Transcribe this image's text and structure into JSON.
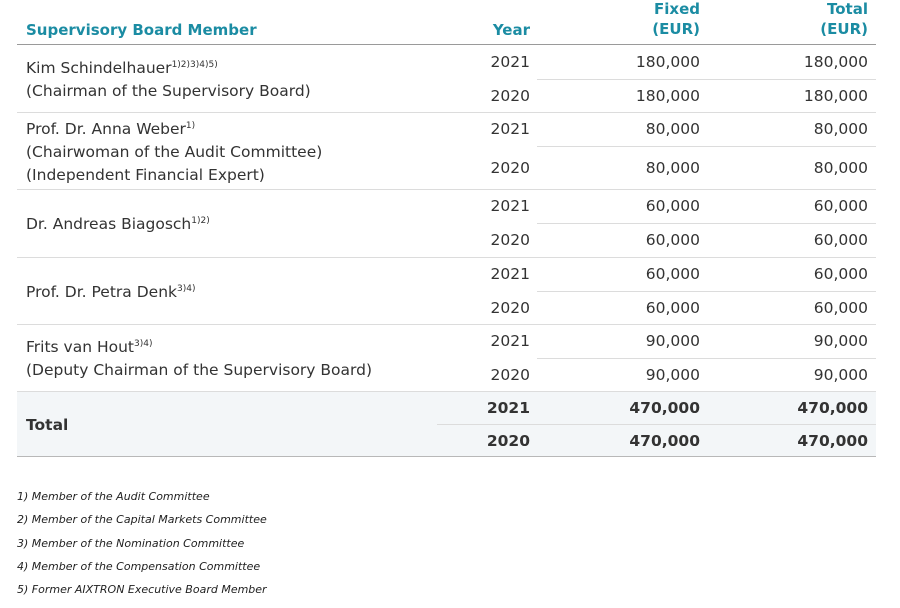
{
  "header": {
    "member": "Supervisory Board Member",
    "year": "Year",
    "fixed": [
      "Fixed",
      "(EUR)"
    ],
    "total": [
      "Total",
      "(EUR)"
    ]
  },
  "members": [
    {
      "name": "Kim Schindelhauer",
      "notes": "1)2)3)4)5)",
      "roles": [
        "(Chairman of the Supervisory Board)"
      ],
      "rows": [
        [
          "2021",
          "180,000",
          "180,000"
        ],
        [
          "2020",
          "180,000",
          "180,000"
        ]
      ]
    },
    {
      "name": "Prof. Dr. Anna Weber",
      "notes": "1)",
      "roles": [
        "(Chairwoman of the Audit Committee)",
        "(Independent Financial Expert)"
      ],
      "rows": [
        [
          "2021",
          "80,000",
          "80,000"
        ],
        [
          "2020",
          "80,000",
          "80,000"
        ]
      ]
    },
    {
      "name": "Dr. Andreas Biagosch",
      "notes": "1)2)",
      "roles": [],
      "rows": [
        [
          "2021",
          "60,000",
          "60,000"
        ],
        [
          "2020",
          "60,000",
          "60,000"
        ]
      ]
    },
    {
      "name": "Prof. Dr. Petra Denk",
      "notes": "3)4)",
      "roles": [],
      "rows": [
        [
          "2021",
          "60,000",
          "60,000"
        ],
        [
          "2020",
          "60,000",
          "60,000"
        ]
      ]
    },
    {
      "name": "Frits van Hout",
      "notes": "3)4)",
      "roles": [
        "(Deputy Chairman of the Supervisory Board)"
      ],
      "rows": [
        [
          "2021",
          "90,000",
          "90,000"
        ],
        [
          "2020",
          "90,000",
          "90,000"
        ]
      ]
    }
  ],
  "total": {
    "label": "Total",
    "rows": [
      [
        "2021",
        "470,000",
        "470,000"
      ],
      [
        "2020",
        "470,000",
        "470,000"
      ]
    ]
  },
  "footnotes": [
    "1) Member of the Audit Committee",
    "2) Member of the Capital Markets Committee",
    "3) Member of the Nomination Committee",
    "4) Member of the Compensation Committee",
    "5) Former AIXTRON Executive Board Member"
  ]
}
